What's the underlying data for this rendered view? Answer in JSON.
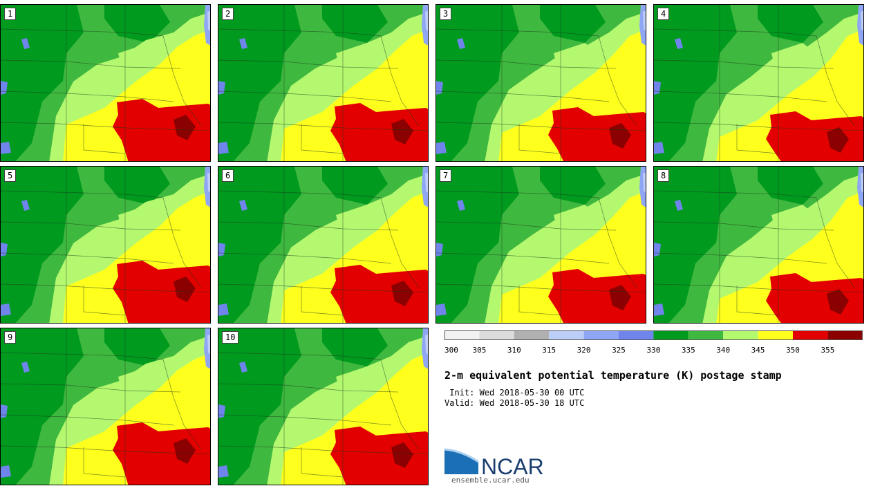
{
  "title": "2-m equivalent potential temperature (K) postage stamp",
  "init": " Init: Wed 2018-05-30 00 UTC",
  "valid": "Valid: Wed 2018-05-30 18 UTC",
  "members": [
    {
      "label": "1"
    },
    {
      "label": "2"
    },
    {
      "label": "3"
    },
    {
      "label": "4"
    },
    {
      "label": "5"
    },
    {
      "label": "6"
    },
    {
      "label": "7"
    },
    {
      "label": "8"
    },
    {
      "label": "9"
    },
    {
      "label": "10"
    }
  ],
  "colorbar": {
    "ticks": [
      "300",
      "305",
      "310",
      "315",
      "320",
      "325",
      "330",
      "335",
      "340",
      "345",
      "350",
      "355"
    ],
    "colors": [
      "#f2f2f2",
      "#dcdcdc",
      "#b0b0b0",
      "#bccdf8",
      "#8fa6f4",
      "#6f85ec",
      "#009a1e",
      "#3fb83f",
      "#b4f870",
      "#ffff1e",
      "#e30000",
      "#8b0000"
    ]
  },
  "logo": {
    "text": "NCAR",
    "site": "ensemble.ucar.edu"
  }
}
